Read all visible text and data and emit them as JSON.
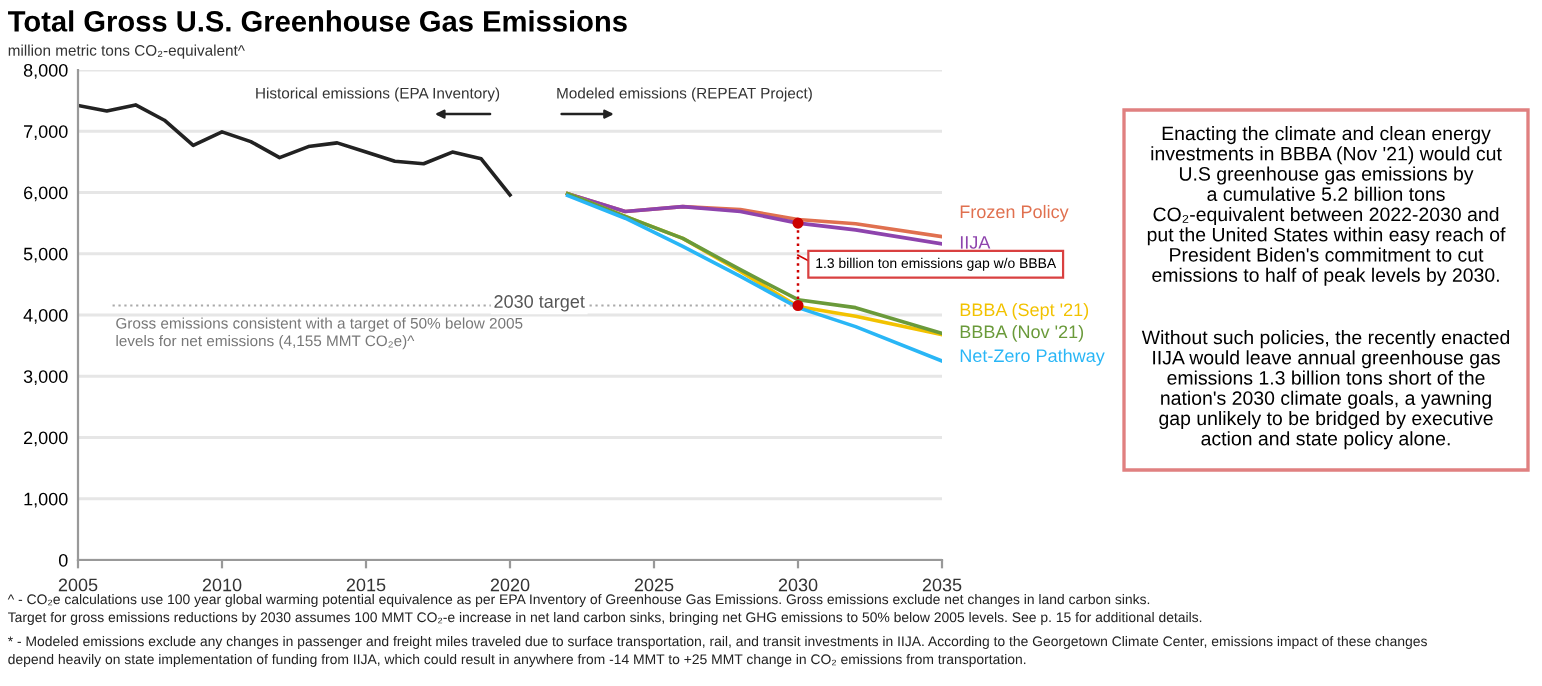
{
  "chart_data": {
    "type": "line",
    "title": "Total Gross U.S. Greenhouse Gas Emissions",
    "subtitle": "million metric tons CO₂-equivalent^",
    "xlim": [
      2005,
      2035
    ],
    "xticks": [
      2005,
      2010,
      2015,
      2020,
      2025,
      2030,
      2035
    ],
    "ylim": [
      0,
      8000
    ],
    "yticks": [
      {
        "value": 0,
        "label": "0"
      },
      {
        "value": 1000,
        "label": "1,000"
      },
      {
        "value": 2000,
        "label": "2,000"
      },
      {
        "value": 3000,
        "label": "3,000"
      },
      {
        "value": 4000,
        "label": "4,000"
      },
      {
        "value": 5000,
        "label": "5,000"
      },
      {
        "value": 6000,
        "label": "6,000"
      },
      {
        "value": 7000,
        "label": "7,000"
      },
      {
        "value": 8000,
        "label": "8,000"
      }
    ],
    "grid": "y",
    "legend": false,
    "marker": "none",
    "line_style": "solid",
    "series": [
      {
        "color": "#222222",
        "x": [
          2005,
          2006,
          2007,
          2008,
          2009,
          2010,
          2011,
          2012,
          2013,
          2014,
          2015,
          2016,
          2017,
          2018,
          2019,
          2020
        ],
        "values": [
          7420,
          7330,
          7430,
          7180,
          6770,
          6990,
          6830,
          6570,
          6750,
          6810,
          6660,
          6510,
          6470,
          6660,
          6550,
          5960
        ]
      },
      {
        "name": "Frozen Policy",
        "color": "#e0704f",
        "x": [
          2022,
          2024,
          2026,
          2028,
          2030,
          2032,
          2035
        ],
        "values": [
          5980,
          5690,
          5770,
          5720,
          5560,
          5490,
          5280
        ]
      },
      {
        "name": "IIJA",
        "color": "#8e44ad",
        "x": [
          2022,
          2024,
          2026,
          2028,
          2030,
          2032,
          2035
        ],
        "values": [
          5980,
          5690,
          5770,
          5690,
          5500,
          5390,
          5160
        ]
      },
      {
        "name": "BBBA (Sept '21)",
        "color": "#f2c200",
        "x": [
          2022,
          2024,
          2026,
          2028,
          2030,
          2032,
          2035
        ],
        "values": [
          5980,
          5610,
          5250,
          4710,
          4140,
          3980,
          3680
        ]
      },
      {
        "name": "BBBA (Nov '21)",
        "color": "#6a9a3a",
        "x": [
          2022,
          2024,
          2026,
          2028,
          2030,
          2032,
          2035
        ],
        "values": [
          5980,
          5610,
          5250,
          4740,
          4250,
          4120,
          3700
        ]
      },
      {
        "name": "Net-Zero Pathway",
        "color": "#29b6f6",
        "x": [
          2022,
          2024,
          2026,
          2028,
          2030,
          2032,
          2035
        ],
        "values": [
          5950,
          5580,
          5120,
          4630,
          4120,
          3810,
          3250
        ]
      }
    ],
    "ref_lines": [
      {
        "axis": "y",
        "value": 4155,
        "label": "2030 target",
        "color": "#aaaaaa",
        "line_style": "dotted"
      }
    ],
    "annotations": [
      "Historical emissions (EPA Inventory)",
      "Modeled emissions (REPEAT Project)",
      "Gross emissions consistent with a target of 50% below 2005\nlevels for net emissions (4,155 MMT CO₂e)^",
      "1.3 billion ton emissions gap w/o BBBA",
      "Enacting the climate and clean energy\ninvestments in BBBA (Nov '21) would cut\nU.S greenhouse gas emissions by\na cumulative 5.2 billion tons\nCO₂-equivalent between 2022-2030 and\nput the United States within easy reach of\nPresident Biden's commitment to cut\nemissions to half of peak levels by 2030.",
      "Without such policies, the recently enacted\nIIJA would leave annual greenhouse gas\nemissions 1.3 billion tons short of the\nnation's 2030 climate goals, a yawning\ngap unlikely to be bridged by executive\naction and state policy alone.",
      "^ - CO₂e calculations use 100 year global warming potential equivalence as per EPA Inventory of Greenhouse Gas Emissions. Gross emissions exclude net changes in land carbon sinks.\nTarget for gross emissions reductions by 2030 assumes 100 MMT CO₂-e increase in net land carbon sinks, bringing net GHG emissions to 50% below 2005 levels. See p. 15 for additional details.",
      "* - Modeled emissions exclude any changes in passenger and freight miles traveled due to surface transportation, rail, and transit investments in IIJA. According to the Georgetown Climate Center, emissions impact of these changes\ndepend heavily on state implementation of funding from IIJA, which could result in anywhere from -14 MMT to +25 MMT change in CO₂ emissions from transportation."
    ]
  }
}
